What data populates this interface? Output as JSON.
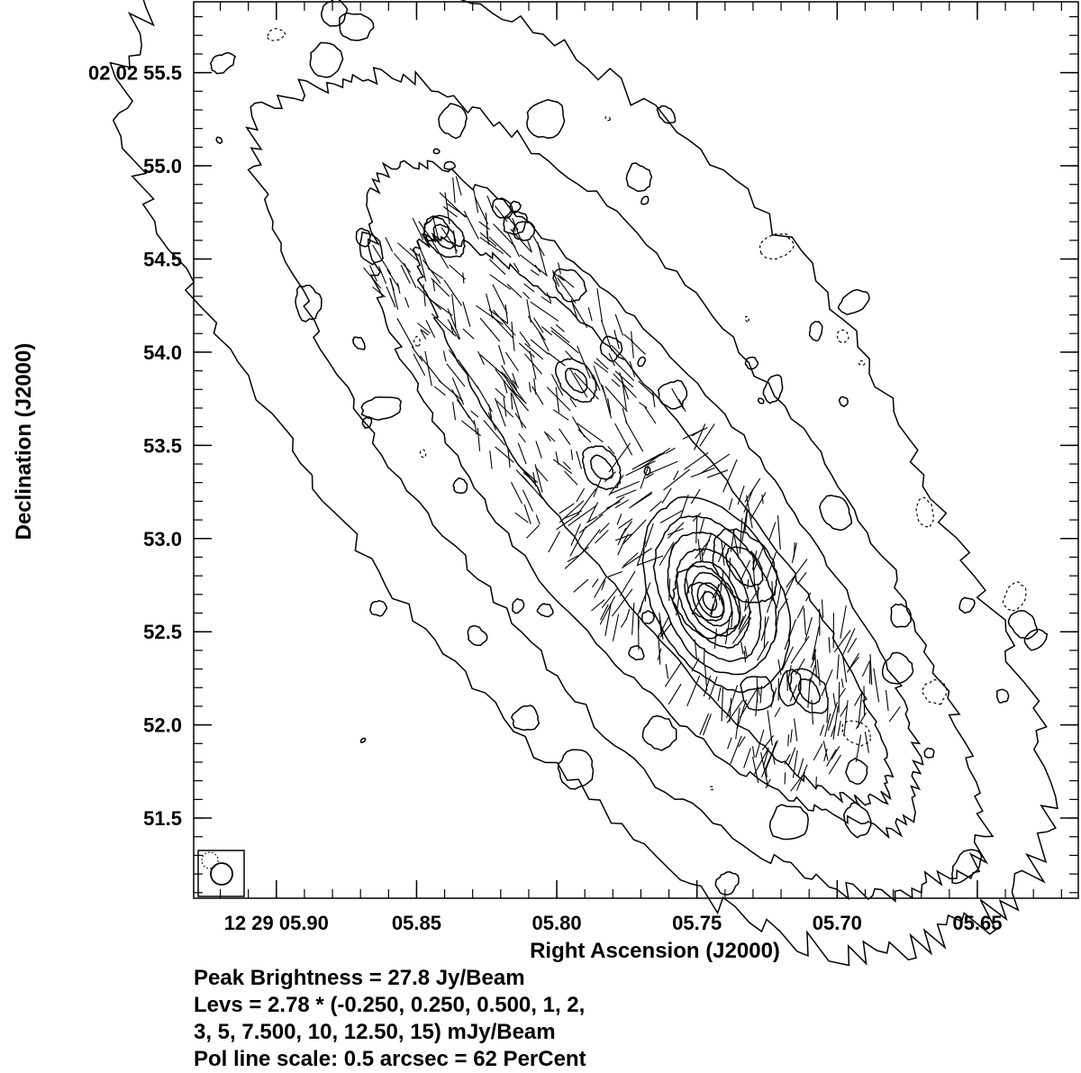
{
  "chart_data": {
    "type": "contour",
    "xlabel": "Right Ascension (J2000)",
    "ylabel": "Declination (J2000)",
    "x_ticks": [
      "12 29 05.90",
      "05.85",
      "05.80",
      "05.75",
      "05.70",
      "05.65"
    ],
    "y_ticks": [
      "02 02 55.5",
      "55.0",
      "54.5",
      "54.0",
      "53.5",
      "53.0",
      "52.5",
      "52.0",
      "51.5"
    ],
    "x_tick_values_sec": [
      5.9,
      5.85,
      5.8,
      5.75,
      5.7,
      5.65
    ],
    "y_tick_values_arcsec": [
      55.5,
      55.0,
      54.5,
      54.0,
      53.5,
      53.0,
      52.5,
      52.0,
      51.5
    ],
    "xlim_sec": [
      5.9295,
      5.614
    ],
    "ylim_arcsec": [
      51.07,
      55.88
    ],
    "peak_brightness_jy_per_beam": 27.8,
    "contour_base_mjy_per_beam": 2.78,
    "contour_multipliers": [
      -0.25,
      0.25,
      0.5,
      1,
      2,
      3,
      5,
      7.5,
      10,
      12.5,
      15
    ],
    "pol_line_scale": {
      "arcsec": 0.5,
      "percent": 62
    },
    "features": {
      "jet_axis_start": [
        5.843,
        54.55
      ],
      "jet_axis_end": [
        5.705,
        51.95
      ],
      "knots": [
        {
          "ra": 5.84,
          "dec": 54.62
        },
        {
          "ra": 5.793,
          "dec": 53.85
        },
        {
          "ra": 5.784,
          "dec": 53.38
        },
        {
          "ra": 5.747,
          "dec": 52.66
        },
        {
          "ra": 5.733,
          "dec": 52.85
        },
        {
          "ra": 5.71,
          "dec": 52.18
        }
      ]
    },
    "grid": false
  },
  "notes": {
    "peak": "Peak Brightness =  27.8 Jy/Beam",
    "levs1": "Levs = 2.78 * (-0.250, 0.250, 0.500, 1, 2,",
    "levs2": "3, 5, 7.500, 10, 12.50, 15) mJy/Beam",
    "pol": "Pol line scale: 0.5 arcsec =  62 PerCent"
  }
}
